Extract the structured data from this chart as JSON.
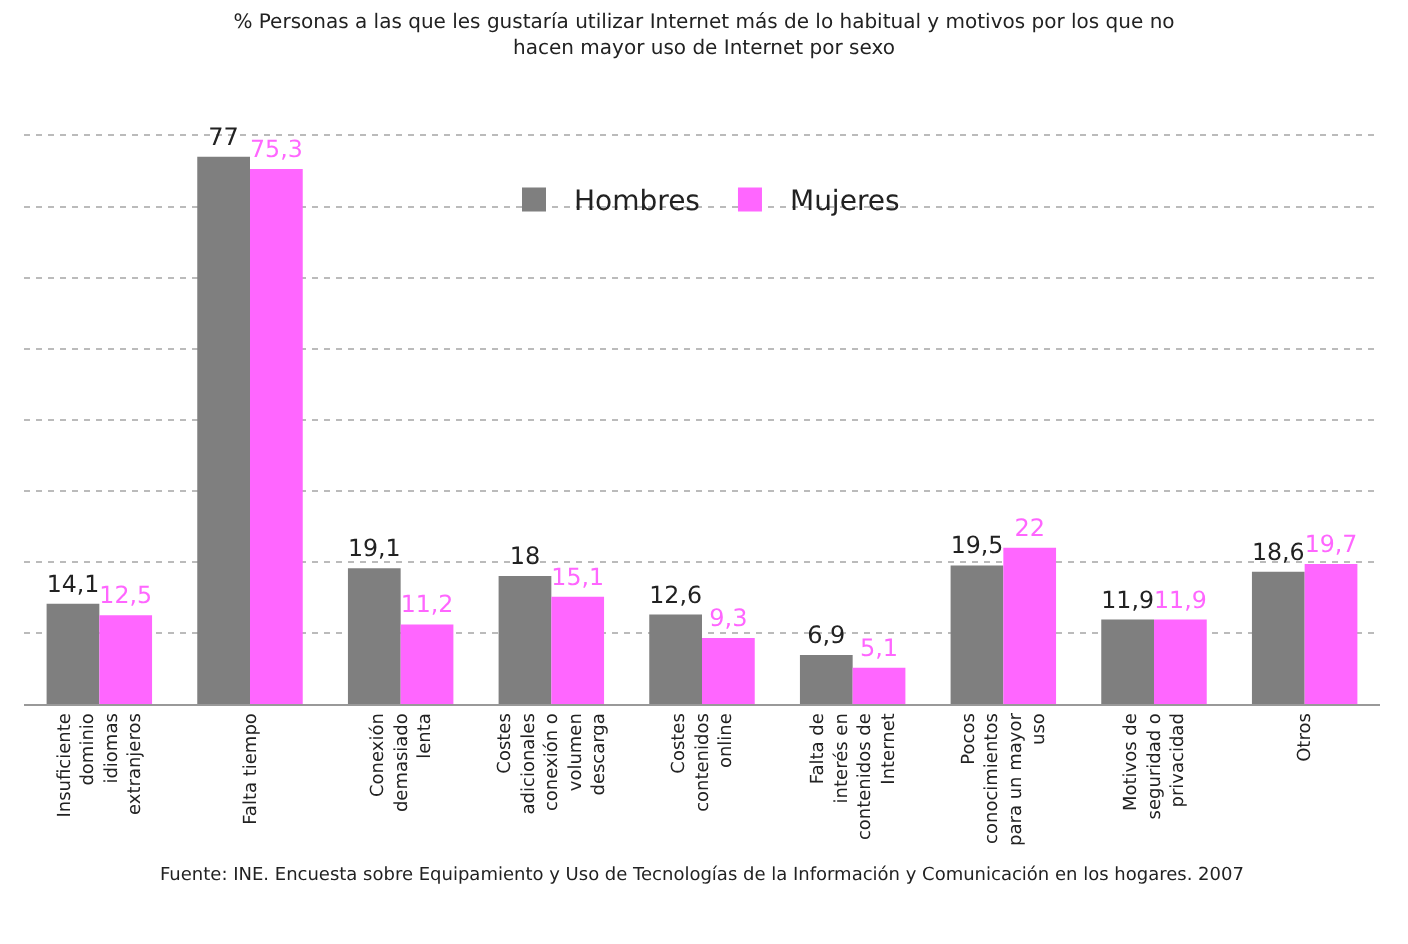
{
  "chart_data": {
    "type": "bar",
    "title": "% Personas a las que les gustaría utilizar Internet más de lo habitual y motivos por los que no hacen mayor uso de Internet por sexo",
    "categories": [
      "Insuficiente dominio idiomas extranjeros",
      "Falta tiempo",
      "Conexión demasiado lenta",
      "Costes adicionales conexión o volumen descarga",
      "Costes contenidos online",
      "Falta de interés en contenidos de Internet",
      "Pocos conocimientos para un mayor uso",
      "Motivos de seguridad o privacidad",
      "Otros"
    ],
    "series": [
      {
        "name": "Hombres",
        "color": "#7f7f7f",
        "values": [
          14.1,
          77,
          19.1,
          18,
          12.6,
          6.9,
          19.5,
          11.9,
          18.6
        ],
        "value_labels": [
          "14,1",
          "77",
          "19,1",
          "18",
          "12,6",
          "6,9",
          "19,5",
          "11,9",
          "18,6"
        ]
      },
      {
        "name": "Mujeres",
        "color": "#ff66ff",
        "values": [
          12.5,
          75.3,
          11.2,
          15.1,
          9.3,
          5.1,
          22,
          11.9,
          19.7
        ],
        "value_labels": [
          "12,5",
          "75,3",
          "11,2",
          "15,1",
          "9,3",
          "5,1",
          "22",
          "11,9",
          "19,7"
        ]
      }
    ],
    "grid": "y",
    "legend": "top",
    "tick_labels": "x",
    "annotations": [
      "Fuente: INE. Encuesta sobre Equipamiento y Uso de Tecnologías de la Información y Comunicación en los hogares. 2007"
    ]
  }
}
